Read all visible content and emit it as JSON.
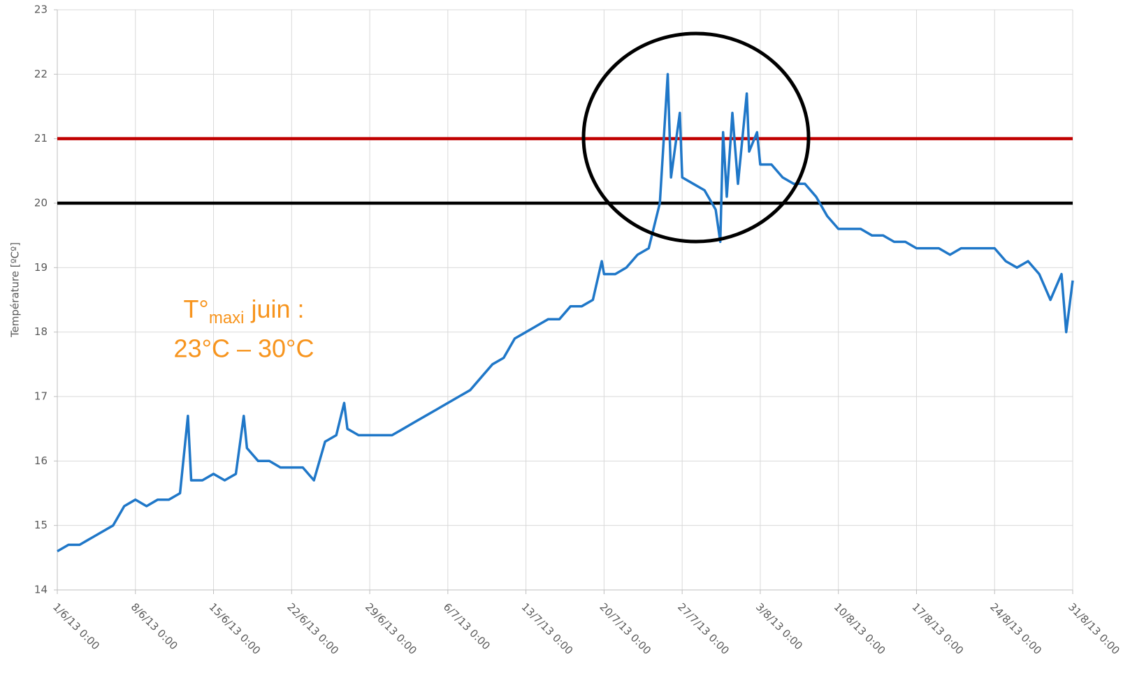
{
  "chart_data": {
    "type": "line",
    "y_label": "Température [ºCº]",
    "annotation": {
      "line1": {
        "main": "T°",
        "sub": "maxi",
        "rest": " juin :"
      },
      "line2": "23°C – 30°C"
    },
    "color": "#1f77c8",
    "reference_lines": [
      {
        "value": 21,
        "color": "#c00000"
      },
      {
        "value": 20,
        "color": "#000000"
      }
    ],
    "grid": true,
    "xlim": [
      "2013-06-01T00:00",
      "2013-08-31T00:00"
    ],
    "xticks": [
      {
        "value": "2013-06-01T00:00",
        "label": "1/6/13 0:00"
      },
      {
        "value": "2013-06-08T00:00",
        "label": "8/6/13 0:00"
      },
      {
        "value": "2013-06-15T00:00",
        "label": "15/6/13 0:00"
      },
      {
        "value": "2013-06-22T00:00",
        "label": "22/6/13 0:00"
      },
      {
        "value": "2013-06-29T00:00",
        "label": "29/6/13 0:00"
      },
      {
        "value": "2013-07-06T00:00",
        "label": "6/7/13 0:00"
      },
      {
        "value": "2013-07-13T00:00",
        "label": "13/7/13 0:00"
      },
      {
        "value": "2013-07-20T00:00",
        "label": "20/7/13 0:00"
      },
      {
        "value": "2013-07-27T00:00",
        "label": "27/7/13 0:00"
      },
      {
        "value": "2013-08-03T00:00",
        "label": "3/8/13 0:00"
      },
      {
        "value": "2013-08-10T00:00",
        "label": "10/8/13 0:00"
      },
      {
        "value": "2013-08-17T00:00",
        "label": "17/8/13 0:00"
      },
      {
        "value": "2013-08-24T00:00",
        "label": "24/8/13 0:00"
      },
      {
        "value": "2013-08-31T00:00",
        "label": "31/8/13 0:00"
      }
    ],
    "ylim": [
      14,
      23
    ],
    "yticks": [
      14,
      15,
      16,
      17,
      18,
      19,
      20,
      21,
      22,
      23
    ],
    "x": [
      "2013-06-01T00:00",
      "2013-06-02T00:00",
      "2013-06-03T00:00",
      "2013-06-04T00:00",
      "2013-06-05T00:00",
      "2013-06-06T00:00",
      "2013-06-07T00:00",
      "2013-06-08T00:00",
      "2013-06-09T00:00",
      "2013-06-10T00:00",
      "2013-06-11T00:00",
      "2013-06-12T00:00",
      "2013-06-12T17:00",
      "2013-06-13T00:00",
      "2013-06-14T00:00",
      "2013-06-15T00:00",
      "2013-06-16T00:00",
      "2013-06-17T00:00",
      "2013-06-17T17:00",
      "2013-06-18T00:00",
      "2013-06-19T00:00",
      "2013-06-20T00:00",
      "2013-06-21T00:00",
      "2013-06-22T00:00",
      "2013-06-23T00:00",
      "2013-06-24T00:00",
      "2013-06-25T00:00",
      "2013-06-26T00:00",
      "2013-06-26T17:00",
      "2013-06-27T00:00",
      "2013-06-28T00:00",
      "2013-06-29T00:00",
      "2013-06-30T00:00",
      "2013-07-01T00:00",
      "2013-07-02T00:00",
      "2013-07-03T00:00",
      "2013-07-04T00:00",
      "2013-07-05T00:00",
      "2013-07-06T00:00",
      "2013-07-07T00:00",
      "2013-07-08T00:00",
      "2013-07-09T00:00",
      "2013-07-10T00:00",
      "2013-07-11T00:00",
      "2013-07-12T00:00",
      "2013-07-13T00:00",
      "2013-07-14T00:00",
      "2013-07-15T00:00",
      "2013-07-16T00:00",
      "2013-07-17T00:00",
      "2013-07-18T00:00",
      "2013-07-19T00:00",
      "2013-07-19T19:00",
      "2013-07-20T00:00",
      "2013-07-21T00:00",
      "2013-07-22T00:00",
      "2013-07-23T00:00",
      "2013-07-24T00:00",
      "2013-07-25T00:00",
      "2013-07-25T17:00",
      "2013-07-26T00:00",
      "2013-07-26T19:00",
      "2013-07-27T00:00",
      "2013-07-28T00:00",
      "2013-07-29T00:00",
      "2013-07-30T00:00",
      "2013-07-30T10:00",
      "2013-07-30T16:00",
      "2013-07-31T00:00",
      "2013-07-31T12:00",
      "2013-08-01T00:00",
      "2013-08-01T19:00",
      "2013-08-02T00:00",
      "2013-08-02T17:00",
      "2013-08-03T00:00",
      "2013-08-04T00:00",
      "2013-08-05T00:00",
      "2013-08-06T00:00",
      "2013-08-07T00:00",
      "2013-08-08T00:00",
      "2013-08-09T00:00",
      "2013-08-10T00:00",
      "2013-08-11T00:00",
      "2013-08-12T00:00",
      "2013-08-13T00:00",
      "2013-08-14T00:00",
      "2013-08-15T00:00",
      "2013-08-16T00:00",
      "2013-08-17T00:00",
      "2013-08-18T00:00",
      "2013-08-19T00:00",
      "2013-08-20T00:00",
      "2013-08-21T00:00",
      "2013-08-22T00:00",
      "2013-08-23T00:00",
      "2013-08-24T00:00",
      "2013-08-25T00:00",
      "2013-08-26T00:00",
      "2013-08-27T00:00",
      "2013-08-28T00:00",
      "2013-08-29T00:00",
      "2013-08-30T00:00",
      "2013-08-30T10:00",
      "2013-08-31T00:00"
    ],
    "values": [
      14.6,
      14.7,
      14.7,
      14.8,
      14.9,
      15.0,
      15.3,
      15.4,
      15.3,
      15.4,
      15.4,
      15.5,
      16.7,
      15.7,
      15.7,
      15.8,
      15.7,
      15.8,
      16.7,
      16.2,
      16.0,
      16.0,
      15.9,
      15.9,
      15.9,
      15.7,
      16.3,
      16.4,
      16.9,
      16.5,
      16.4,
      16.4,
      16.4,
      16.4,
      16.5,
      16.6,
      16.7,
      16.8,
      16.9,
      17.0,
      17.1,
      17.3,
      17.5,
      17.6,
      17.9,
      18.0,
      18.1,
      18.2,
      18.2,
      18.4,
      18.4,
      18.5,
      19.1,
      18.9,
      18.9,
      19.0,
      19.2,
      19.3,
      20.0,
      22.0,
      20.4,
      21.4,
      20.4,
      20.3,
      20.2,
      19.9,
      19.4,
      21.1,
      20.1,
      21.4,
      20.3,
      21.7,
      20.8,
      21.1,
      20.6,
      20.6,
      20.4,
      20.3,
      20.3,
      20.1,
      19.8,
      19.6,
      19.6,
      19.6,
      19.5,
      19.5,
      19.4,
      19.4,
      19.3,
      19.3,
      19.3,
      19.2,
      19.3,
      19.3,
      19.3,
      19.3,
      19.1,
      19.0,
      19.1,
      18.9,
      18.5,
      18.9,
      18.0,
      18.8
    ]
  }
}
